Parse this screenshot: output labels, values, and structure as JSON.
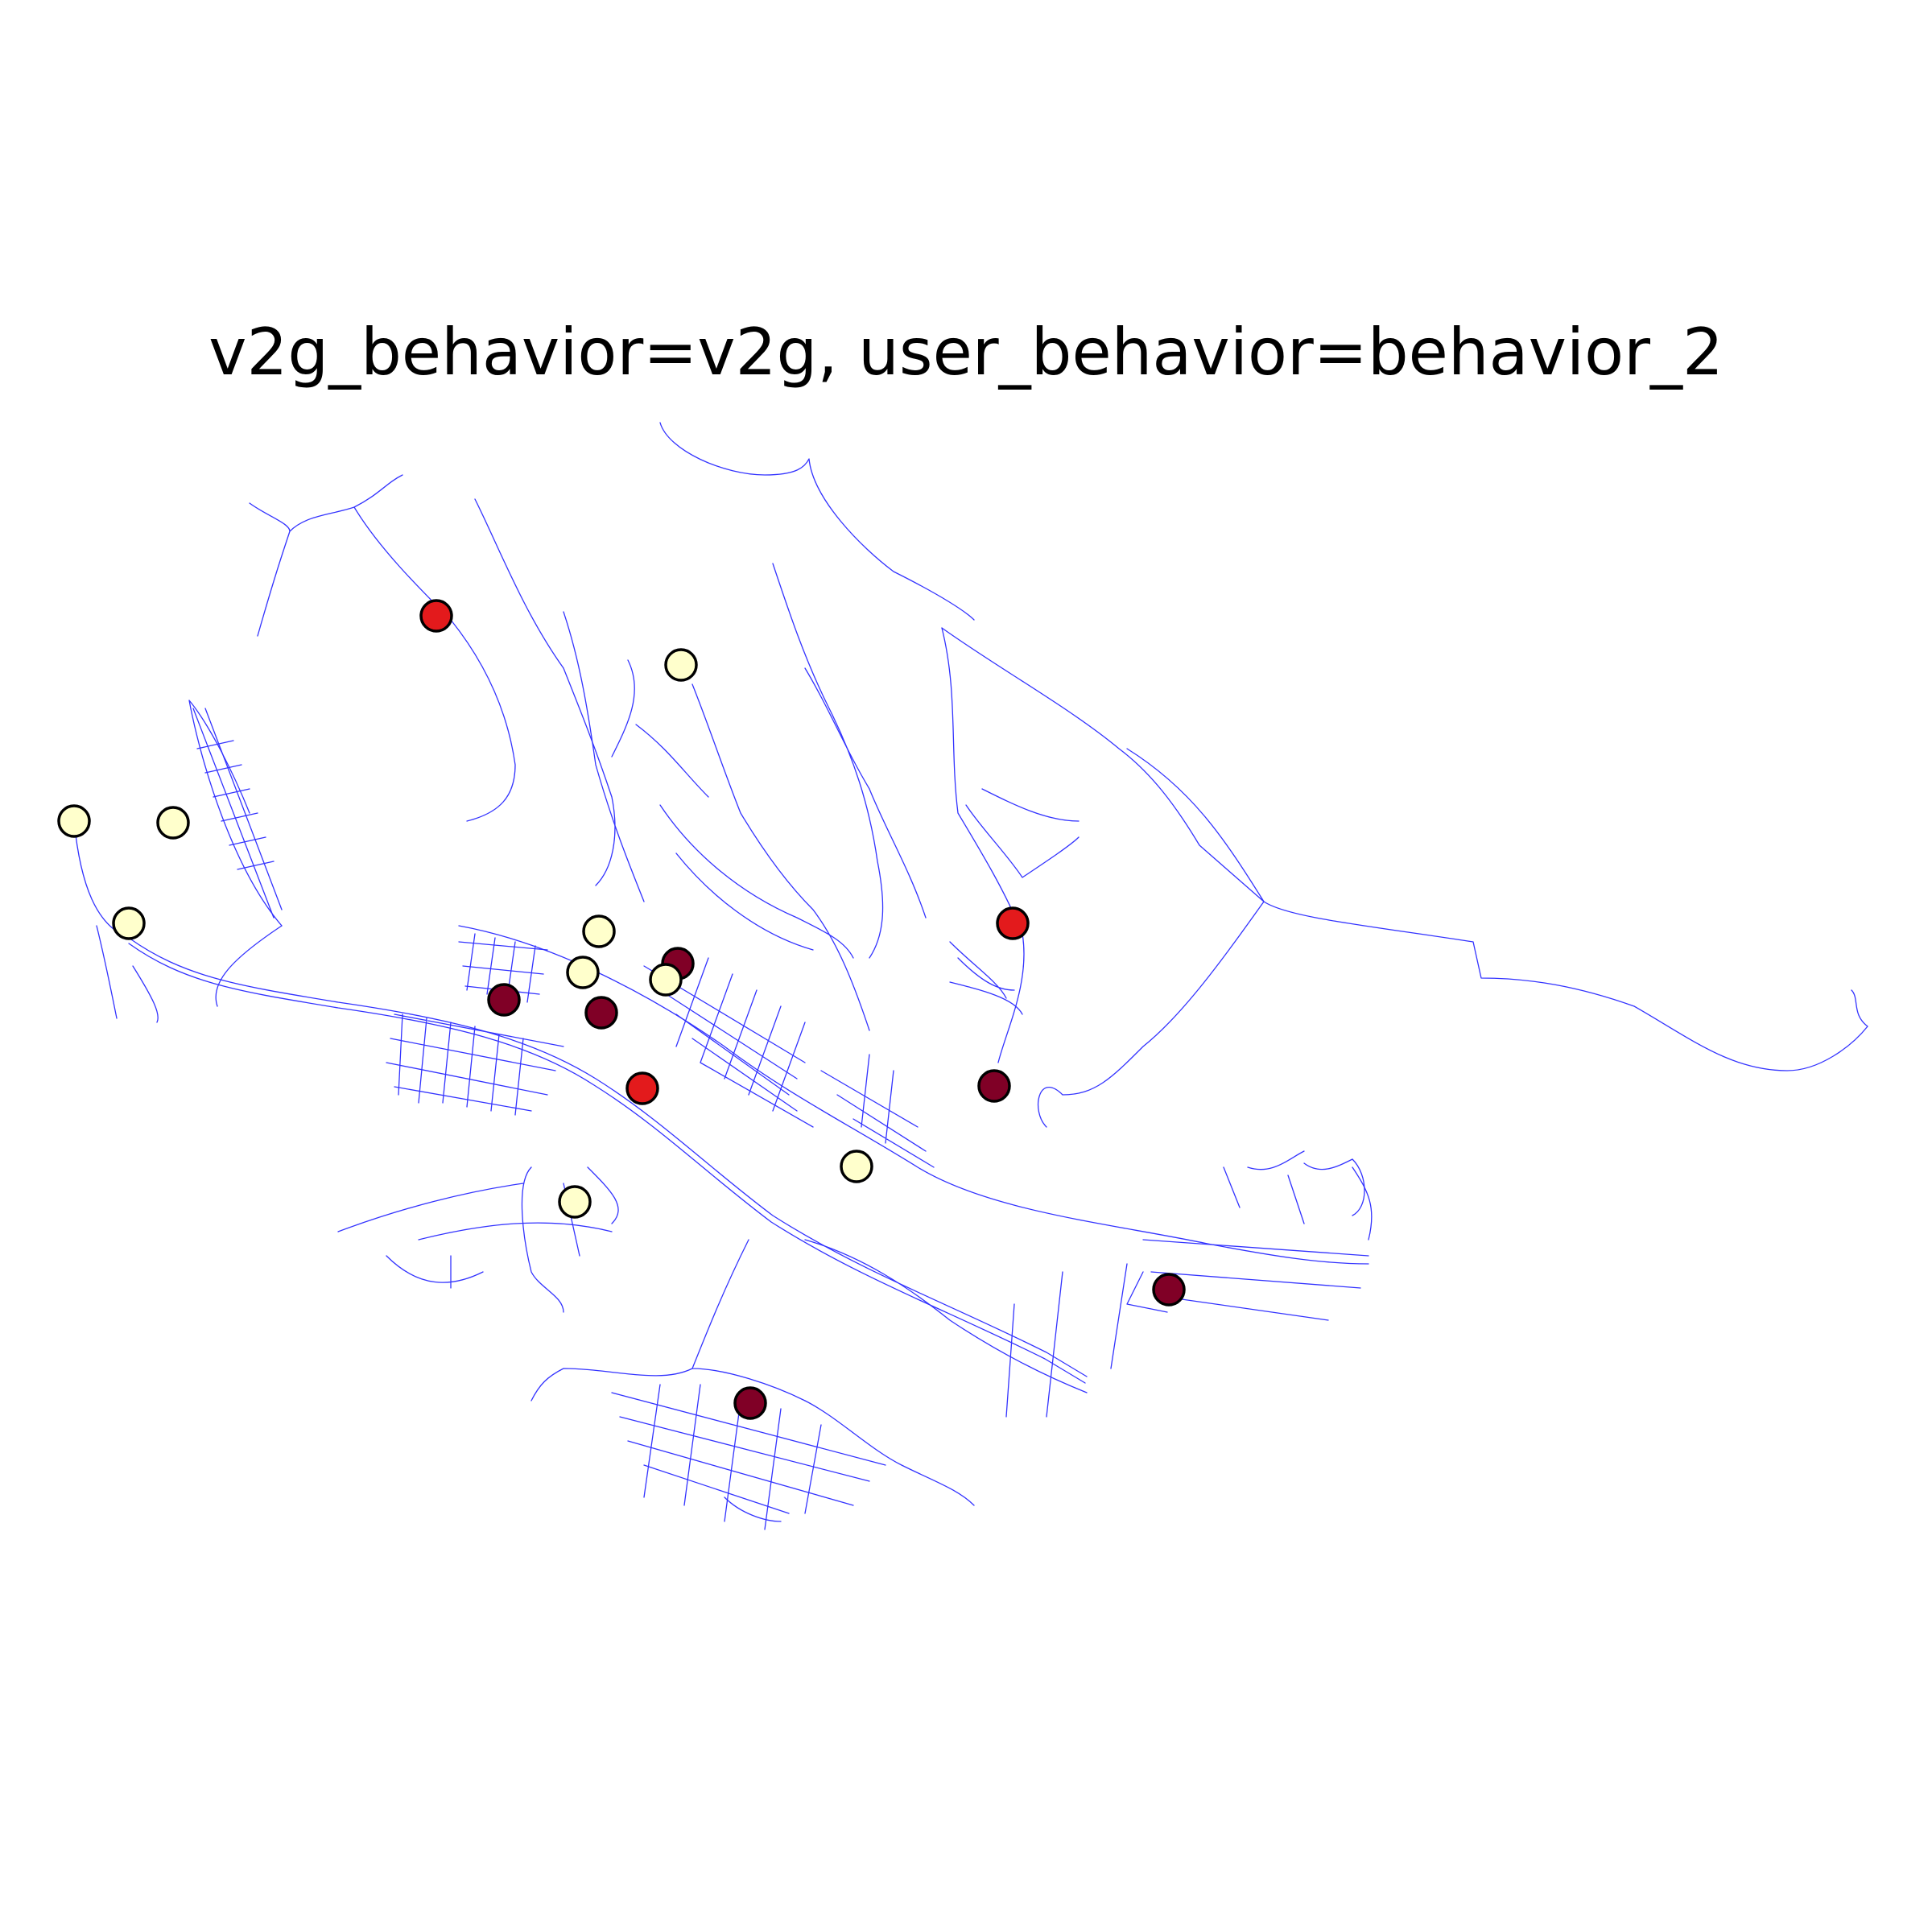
{
  "title": "v2g_behavior=v2g, user_behavior=behavior_2",
  "colors": {
    "road": "#3333ff",
    "level_low": "#ffffcc",
    "level_mid": "#e31a1c",
    "level_high": "#800026",
    "outline": "#000000"
  },
  "stations": [
    {
      "level": "mid"
    },
    {
      "level": "low"
    },
    {
      "level": "low"
    },
    {
      "level": "low"
    },
    {
      "level": "low"
    },
    {
      "level": "low"
    },
    {
      "level": "high"
    },
    {
      "level": "low"
    },
    {
      "level": "low"
    },
    {
      "level": "high"
    },
    {
      "level": "high"
    },
    {
      "level": "mid"
    },
    {
      "level": "mid"
    },
    {
      "level": "high"
    },
    {
      "level": "low"
    },
    {
      "level": "low"
    },
    {
      "level": "high"
    },
    {
      "level": "high"
    }
  ]
}
